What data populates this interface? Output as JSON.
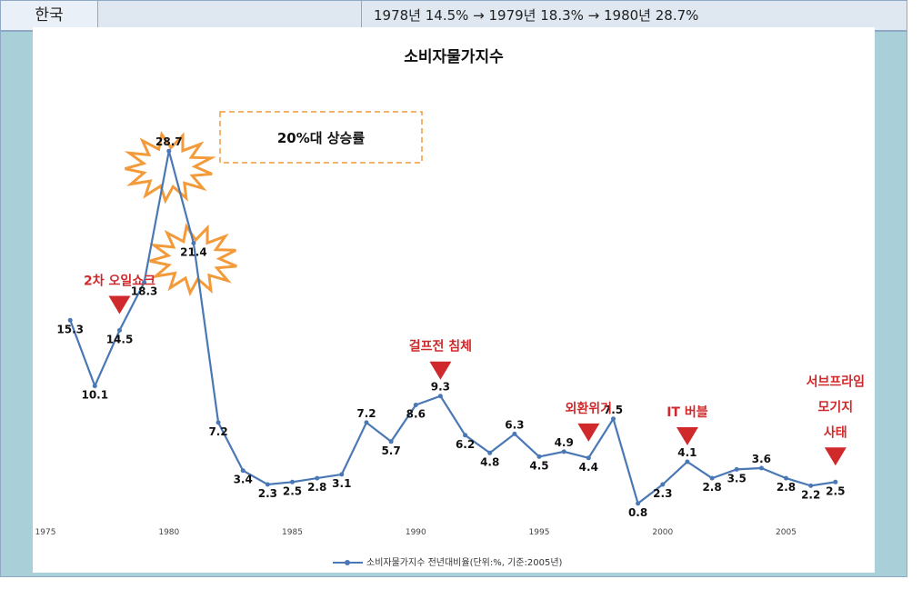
{
  "header": {
    "country": "한국",
    "value_text": "1978년 14.5% → 1979년 18.3% → 1980년 28.7%"
  },
  "chart_data": {
    "type": "line",
    "title": "소비자물가지수",
    "x": [
      1976,
      1977,
      1978,
      1979,
      1980,
      1981,
      1982,
      1983,
      1984,
      1985,
      1986,
      1987,
      1988,
      1989,
      1990,
      1991,
      1992,
      1993,
      1994,
      1995,
      1996,
      1997,
      1998,
      1999,
      2000,
      2001,
      2002,
      2003,
      2004,
      2005,
      2006,
      2007
    ],
    "series": [
      {
        "name": "소비자물가지수 전년대비율(단위:%, 기준:2005년)",
        "color": "#4a78b5",
        "values": [
          15.3,
          10.1,
          14.5,
          18.3,
          28.7,
          21.4,
          7.2,
          3.4,
          2.3,
          2.5,
          2.8,
          3.1,
          7.2,
          5.7,
          8.6,
          9.3,
          6.2,
          4.8,
          6.3,
          4.5,
          4.9,
          4.4,
          7.5,
          0.8,
          2.3,
          4.1,
          2.8,
          3.5,
          3.6,
          2.8,
          2.2,
          2.5
        ]
      }
    ],
    "data_labels": [
      "15.3",
      "10.1",
      "14.5",
      "18.3",
      "28.7",
      "21.4",
      "7.2",
      "3.4",
      "2.3",
      "2.5",
      "2.8",
      "3.1",
      "7.2",
      "5.7",
      "8.6",
      "9.3",
      "6.2",
      "4.8",
      "6.3",
      "4.5",
      "4.9",
      "4.4",
      "7.5",
      "0.8",
      "2.3",
      "4.1",
      "2.8",
      "3.5",
      "3.6",
      "2.8",
      "2.2",
      "2.5"
    ],
    "xticks": [
      1975,
      1980,
      1985,
      1990,
      1995,
      2000,
      2005
    ],
    "xlim": [
      1975,
      2008
    ],
    "ylim": [
      0,
      30
    ],
    "grid": false,
    "legend_position": "bottom",
    "callout_box": "20%대 상승률",
    "annotations": [
      {
        "text": "2차 오일쇼크",
        "year": 1978
      },
      {
        "text": "걸프전 침체",
        "year": 1991
      },
      {
        "text": "외환위기",
        "year": 1997
      },
      {
        "text": "IT 버블",
        "year": 2001
      },
      {
        "text": "서브프라임",
        "year": 2007
      },
      {
        "text": "모기지",
        "year": 2007
      },
      {
        "text": "사태",
        "year": 2007
      }
    ],
    "burst_years": [
      1980,
      1981
    ],
    "burst_color": "#f39a3a",
    "annotation_color": "#d0292b"
  }
}
